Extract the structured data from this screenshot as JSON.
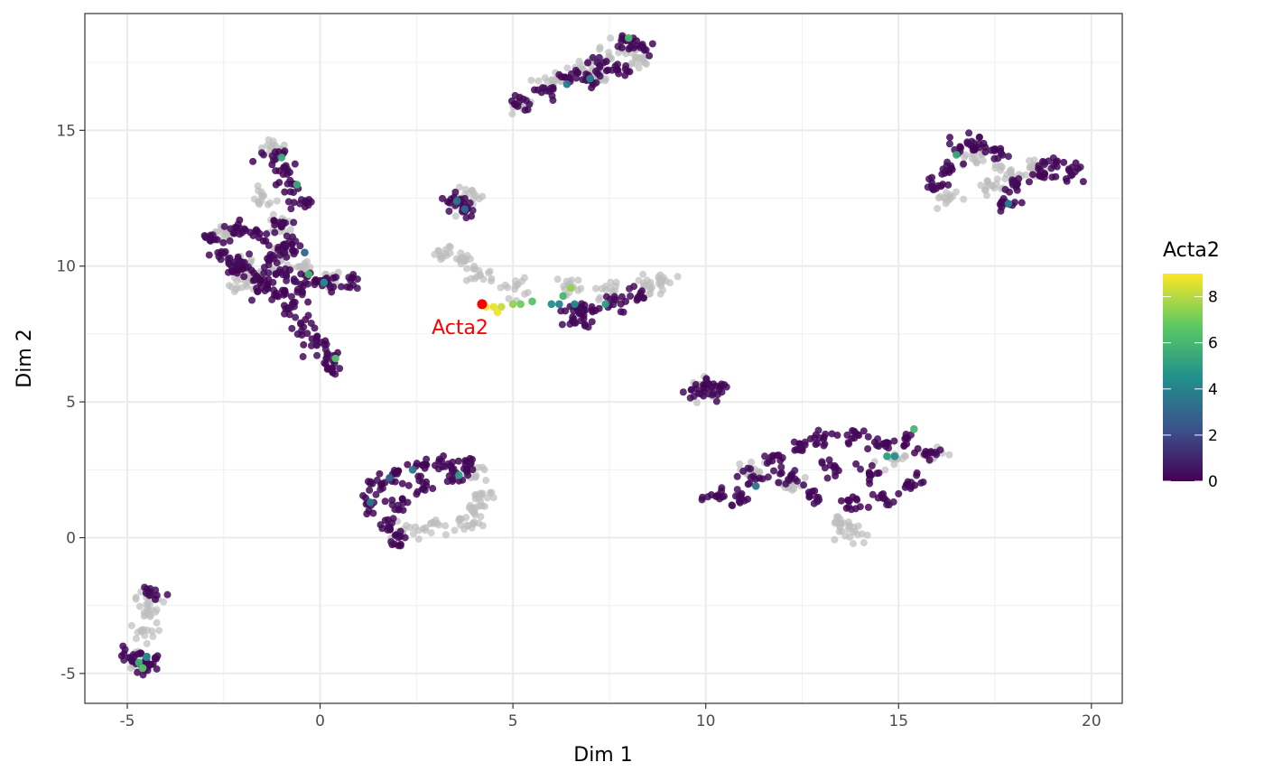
{
  "chart_data": {
    "type": "scatter",
    "title": "",
    "xlabel": "Dim 1",
    "ylabel": "Dim 2",
    "xlim": [
      -6.1,
      20.8
    ],
    "ylim": [
      -6.1,
      19.3
    ],
    "x_ticks": [
      -5,
      0,
      5,
      10,
      15,
      20
    ],
    "y_ticks": [
      -5,
      0,
      5,
      10,
      15
    ],
    "x_tick_labels": [
      "-5",
      "0",
      "5",
      "10",
      "15",
      "20"
    ],
    "y_tick_labels": [
      "-5",
      "0",
      "5",
      "10",
      "15"
    ],
    "grid": true,
    "theme": "bw",
    "color_scale": {
      "name": "viridis",
      "title": "Acta2",
      "range": [
        0,
        9
      ],
      "breaks": [
        0,
        2,
        4,
        6,
        8
      ],
      "break_labels": [
        "0",
        "2",
        "4",
        "6",
        "8"
      ],
      "stops": [
        "#440154",
        "#3b528b",
        "#21908c",
        "#5dc963",
        "#fde725"
      ]
    },
    "legend_position": "right",
    "zero_color": "#bebebe",
    "annotation": {
      "label": "Acta2",
      "x": 4.2,
      "y": 8.6,
      "color": "#ff0000"
    },
    "clusters": [
      {
        "id": "left-cross",
        "grey": [
          [
            -2.5,
            11.2
          ],
          [
            -2.0,
            10.0
          ],
          [
            -2.0,
            9.3
          ],
          [
            -1.5,
            9.6
          ],
          [
            -1.0,
            10.5
          ],
          [
            -1.5,
            12.5
          ],
          [
            -1.2,
            14.3
          ],
          [
            -1.0,
            11.5
          ],
          [
            -0.6,
            10.0
          ],
          [
            0.2,
            9.5
          ]
        ],
        "colored": [
          [
            -2.8,
            11.1
          ],
          [
            -2.2,
            11.4
          ],
          [
            -1.6,
            11.2
          ],
          [
            -1.0,
            10.6
          ],
          [
            -2.5,
            10.5
          ],
          [
            -2.0,
            10.0
          ],
          [
            -1.5,
            9.6
          ],
          [
            -2.2,
            9.9
          ],
          [
            -1.2,
            14.1
          ],
          [
            -1.0,
            13.5
          ],
          [
            -0.8,
            13.0
          ],
          [
            -0.6,
            12.3
          ],
          [
            -1.0,
            11.5
          ],
          [
            -0.8,
            10.8
          ],
          [
            -1.3,
            10.2
          ],
          [
            -0.9,
            9.7
          ],
          [
            -1.6,
            9.2
          ],
          [
            -1.1,
            9.0
          ],
          [
            -0.6,
            9.1
          ],
          [
            -0.2,
            9.5
          ],
          [
            0.2,
            9.4
          ],
          [
            0.8,
            9.4
          ],
          [
            -0.8,
            8.4
          ],
          [
            -0.4,
            7.8
          ],
          [
            -0.1,
            7.2
          ],
          [
            0.2,
            6.8
          ],
          [
            0.3,
            6.2
          ]
        ],
        "high": [
          [
            -1.0,
            14.0,
            5.5
          ],
          [
            -0.6,
            13.0,
            5.5
          ],
          [
            0.4,
            6.6,
            6.5
          ],
          [
            -0.4,
            10.5,
            3.0
          ],
          [
            -0.3,
            9.7,
            6.0
          ],
          [
            0.1,
            9.4,
            4.5
          ]
        ]
      },
      {
        "id": "bottom-left",
        "grey": [
          [
            -4.7,
            -4.5
          ],
          [
            -4.6,
            -3.5
          ],
          [
            -4.5,
            -2.7
          ],
          [
            -4.4,
            -2.2
          ]
        ],
        "colored": [
          [
            -4.9,
            -4.4
          ],
          [
            -4.6,
            -4.8
          ],
          [
            -4.3,
            -2.0
          ],
          [
            -4.4,
            -4.5
          ]
        ],
        "high": [
          [
            -4.7,
            -4.6,
            5.5
          ],
          [
            -4.6,
            -4.8,
            6.5
          ],
          [
            -4.5,
            -4.4,
            4.5
          ]
        ]
      },
      {
        "id": "top-loop",
        "grey": [
          [
            5.2,
            15.9
          ],
          [
            6.0,
            16.8
          ],
          [
            6.8,
            17.4
          ],
          [
            7.5,
            17.8
          ],
          [
            8.0,
            18.2
          ],
          [
            8.2,
            17.5
          ],
          [
            7.2,
            17.0
          ]
        ],
        "colored": [
          [
            5.1,
            15.9
          ],
          [
            5.8,
            16.4
          ],
          [
            6.5,
            17.0
          ],
          [
            7.2,
            17.4
          ],
          [
            7.9,
            18.4
          ],
          [
            8.4,
            18.0
          ],
          [
            7.8,
            17.2
          ],
          [
            7.0,
            16.9
          ]
        ],
        "high": [
          [
            8.0,
            18.4,
            6.0
          ],
          [
            7.0,
            16.9,
            4.0
          ],
          [
            6.4,
            16.7,
            3.5
          ]
        ]
      },
      {
        "id": "center-strip",
        "grey": [
          [
            3.2,
            10.4
          ],
          [
            3.8,
            10.2
          ],
          [
            4.2,
            9.7
          ],
          [
            5.0,
            9.2
          ],
          [
            6.5,
            9.3
          ],
          [
            7.5,
            9.1
          ],
          [
            8.5,
            9.3
          ],
          [
            8.8,
            9.4
          ],
          [
            3.6,
            12.4
          ],
          [
            3.9,
            12.5
          ]
        ],
        "colored": [
          [
            3.5,
            12.4
          ],
          [
            3.7,
            12.1
          ],
          [
            6.5,
            8.3
          ],
          [
            7.0,
            8.4
          ],
          [
            7.6,
            8.6
          ],
          [
            8.2,
            8.9
          ],
          [
            6.8,
            8.1
          ]
        ],
        "high": [
          [
            3.55,
            12.4,
            3.5
          ],
          [
            3.75,
            12.1,
            3.0
          ],
          [
            4.3,
            8.5,
            9.0
          ],
          [
            4.5,
            8.5,
            8.7
          ],
          [
            4.7,
            8.5,
            8.2
          ],
          [
            4.6,
            8.3,
            8.8
          ],
          [
            5.0,
            8.6,
            7.5
          ],
          [
            5.2,
            8.6,
            7.0
          ],
          [
            5.5,
            8.7,
            6.5
          ],
          [
            6.0,
            8.6,
            4.5
          ],
          [
            6.3,
            8.9,
            6.0
          ],
          [
            6.5,
            9.2,
            7.5
          ],
          [
            6.2,
            8.6,
            4.0
          ],
          [
            6.6,
            8.6,
            4.2
          ],
          [
            7.4,
            8.6,
            5.0
          ]
        ]
      },
      {
        "id": "small-10",
        "grey": [
          [
            10.0,
            5.5
          ]
        ],
        "colored": [
          [
            9.8,
            5.4
          ],
          [
            10.1,
            5.6
          ],
          [
            10.3,
            5.4
          ]
        ],
        "high": []
      },
      {
        "id": "loop-mid",
        "grey": [
          [
            2.2,
            0.2
          ],
          [
            3.0,
            0.4
          ],
          [
            3.8,
            0.5
          ],
          [
            4.0,
            1.0
          ],
          [
            4.2,
            1.6
          ],
          [
            4.0,
            2.3
          ]
        ],
        "colored": [
          [
            1.2,
            1.3
          ],
          [
            1.5,
            2.0
          ],
          [
            2.0,
            2.4
          ],
          [
            2.6,
            2.6
          ],
          [
            3.2,
            2.7
          ],
          [
            3.8,
            2.7
          ],
          [
            3.5,
            2.3
          ],
          [
            2.5,
            1.8
          ],
          [
            2.0,
            1.2
          ],
          [
            1.8,
            0.5
          ],
          [
            2.0,
            0.0
          ]
        ],
        "high": [
          [
            1.3,
            1.3,
            3.5
          ],
          [
            1.8,
            2.2,
            3.0
          ],
          [
            2.4,
            2.5,
            3.5
          ],
          [
            3.6,
            2.3,
            5.0
          ]
        ]
      },
      {
        "id": "big-blob",
        "grey": [
          [
            11.2,
            2.5
          ],
          [
            12.2,
            2.0
          ],
          [
            13.5,
            0.5
          ],
          [
            13.8,
            0.2
          ],
          [
            14.8,
            2.8
          ],
          [
            15.8,
            3.1
          ]
        ],
        "colored": [
          [
            10.2,
            1.5
          ],
          [
            10.8,
            1.5
          ],
          [
            11.2,
            2.3
          ],
          [
            11.8,
            2.8
          ],
          [
            12.5,
            3.4
          ],
          [
            13.0,
            3.7
          ],
          [
            13.8,
            3.8
          ],
          [
            14.5,
            3.5
          ],
          [
            15.2,
            3.6
          ],
          [
            15.8,
            3.0
          ],
          [
            15.3,
            2.0
          ],
          [
            14.6,
            1.4
          ],
          [
            13.8,
            1.3
          ],
          [
            12.8,
            1.5
          ],
          [
            12.2,
            2.2
          ],
          [
            13.3,
            2.6
          ],
          [
            14.2,
            2.4
          ]
        ],
        "high": [
          [
            11.3,
            1.9,
            3.5
          ],
          [
            14.7,
            3.0,
            5.0
          ],
          [
            15.4,
            4.0,
            6.0
          ],
          [
            14.9,
            3.0,
            4.5
          ]
        ]
      },
      {
        "id": "top-right",
        "grey": [
          [
            16.3,
            12.5
          ],
          [
            17.0,
            14.0
          ],
          [
            17.8,
            13.5
          ],
          [
            18.5,
            13.6
          ],
          [
            17.4,
            12.9
          ]
        ],
        "colored": [
          [
            16.0,
            13.0
          ],
          [
            16.3,
            13.6
          ],
          [
            16.6,
            14.5
          ],
          [
            17.0,
            14.5
          ],
          [
            17.5,
            14.2
          ],
          [
            18.0,
            13.0
          ],
          [
            17.8,
            12.3
          ],
          [
            18.6,
            13.4
          ],
          [
            19.0,
            13.7
          ],
          [
            19.5,
            13.5
          ]
        ],
        "high": [
          [
            16.5,
            14.1,
            5.5
          ],
          [
            17.85,
            12.3,
            4.0
          ]
        ]
      }
    ]
  }
}
